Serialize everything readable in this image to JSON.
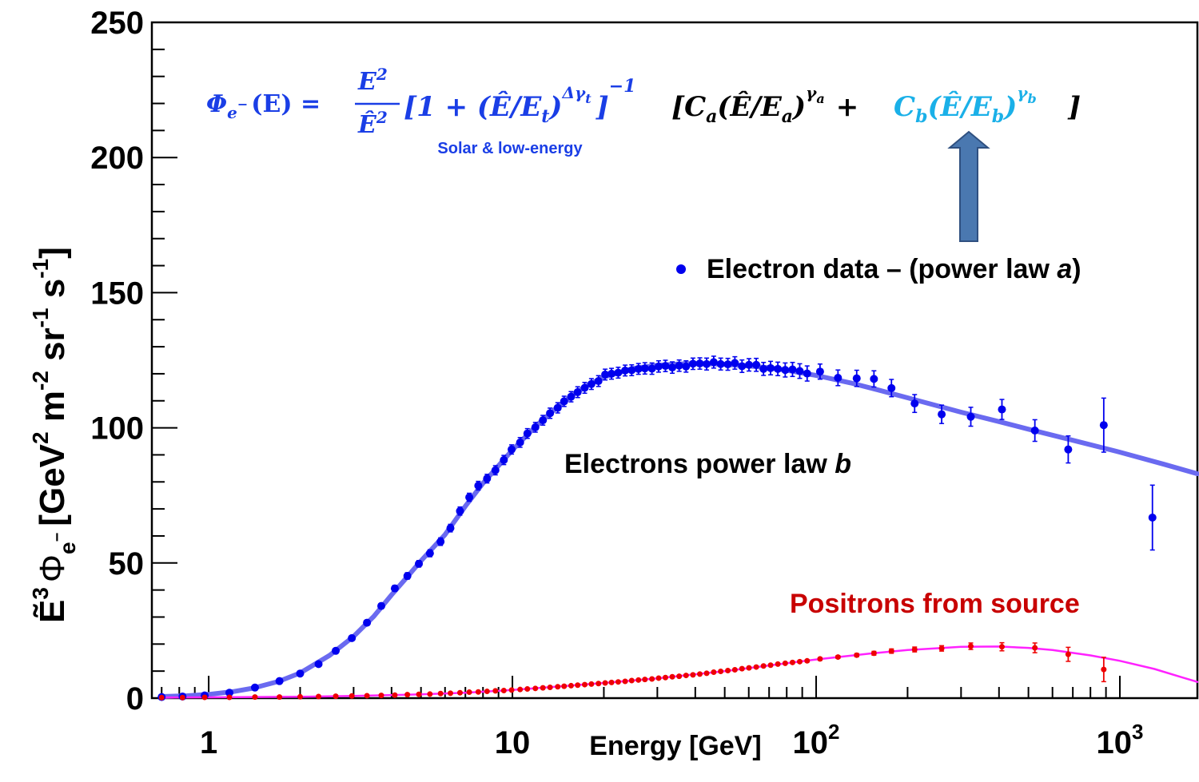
{
  "chart_data": {
    "type": "scatter",
    "xscale": "log",
    "xlim": [
      0.65,
      1800
    ],
    "ylim": [
      0,
      250
    ],
    "xlabel": "Energy [GeV]",
    "ylabel": {
      "e_tilde": "Ẽ",
      "e_exp": "3",
      "phi": "Φ",
      "phi_sub": "e",
      "phi_sub_sup": "−",
      "unit_open": "[GeV",
      "unit_gev_exp": "2",
      "unit_m": " m",
      "unit_m_exp": "-2",
      "unit_sr": " sr",
      "unit_sr_exp": "-1",
      "unit_s": " s",
      "unit_s_exp": "-1",
      "unit_close": "]"
    },
    "yticks": [
      "0",
      "50",
      "100",
      "150",
      "200",
      "250"
    ],
    "xticks": [
      {
        "value": 1,
        "base": "1",
        "exp": ""
      },
      {
        "value": 10,
        "base": "10",
        "exp": ""
      },
      {
        "value": 100,
        "base": "10",
        "exp": "2"
      },
      {
        "value": 1000,
        "base": "10",
        "exp": "3"
      }
    ],
    "series": [
      {
        "name": "Electron data – (power law a)",
        "color": "#0000ee",
        "points": [
          [
            0.7,
            0.4,
            0.3
          ],
          [
            0.82,
            0.6,
            0.3
          ],
          [
            0.97,
            1.0,
            0.3
          ],
          [
            1.17,
            2.0,
            0.3
          ],
          [
            1.42,
            3.9,
            0.4
          ],
          [
            1.71,
            6.3,
            0.5
          ],
          [
            2.0,
            9.1,
            0.5
          ],
          [
            2.3,
            12.6,
            0.6
          ],
          [
            2.62,
            17.5,
            0.7
          ],
          [
            2.96,
            22.2,
            0.8
          ],
          [
            3.32,
            27.9,
            0.9
          ],
          [
            3.7,
            34.1,
            1.0
          ],
          [
            4.1,
            40.6,
            1.1
          ],
          [
            4.51,
            45.2,
            1.2
          ],
          [
            4.92,
            49.7,
            1.2
          ],
          [
            5.35,
            53.6,
            1.3
          ],
          [
            5.8,
            57.9,
            1.4
          ],
          [
            6.25,
            62.9,
            1.4
          ],
          [
            6.72,
            69.2,
            1.5
          ],
          [
            7.21,
            74.3,
            1.5
          ],
          [
            7.72,
            78.6,
            1.6
          ],
          [
            8.25,
            81.2,
            1.6
          ],
          [
            8.79,
            84.3,
            1.7
          ],
          [
            9.37,
            88.1,
            1.7
          ],
          [
            9.94,
            92.0,
            1.7
          ],
          [
            10.6,
            94.6,
            1.8
          ],
          [
            11.2,
            97.9,
            1.8
          ],
          [
            11.9,
            100.2,
            1.8
          ],
          [
            12.6,
            102.8,
            1.8
          ],
          [
            13.3,
            105.4,
            1.9
          ],
          [
            14.1,
            107.4,
            1.9
          ],
          [
            14.8,
            109.8,
            1.9
          ],
          [
            15.6,
            111.5,
            1.9
          ],
          [
            16.4,
            113.2,
            2.0
          ],
          [
            17.3,
            114.8,
            2.0
          ],
          [
            18.2,
            116.2,
            2.0
          ],
          [
            19.2,
            117.3,
            2.0
          ],
          [
            20.2,
            119.7,
            2.0
          ],
          [
            21.2,
            120.0,
            2.0
          ],
          [
            22.3,
            120.4,
            2.0
          ],
          [
            23.5,
            121.2,
            2.0
          ],
          [
            24.7,
            121.3,
            2.0
          ],
          [
            26.0,
            121.8,
            2.0
          ],
          [
            27.3,
            122.0,
            2.1
          ],
          [
            28.8,
            121.9,
            2.1
          ],
          [
            30.3,
            122.7,
            2.1
          ],
          [
            31.9,
            122.9,
            2.1
          ],
          [
            33.6,
            122.3,
            2.1
          ],
          [
            35.4,
            123.0,
            2.1
          ],
          [
            37.3,
            122.7,
            2.1
          ],
          [
            39.3,
            123.7,
            2.1
          ],
          [
            41.4,
            123.8,
            2.1
          ],
          [
            43.6,
            123.6,
            2.2
          ],
          [
            46.0,
            124.3,
            2.2
          ],
          [
            48.5,
            123.6,
            2.2
          ],
          [
            51.2,
            123.5,
            2.2
          ],
          [
            54.0,
            124.0,
            2.3
          ],
          [
            57.0,
            122.8,
            2.3
          ],
          [
            60.1,
            123.3,
            2.3
          ],
          [
            63.5,
            123.3,
            2.4
          ],
          [
            67.1,
            121.8,
            2.4
          ],
          [
            70.8,
            122.1,
            2.5
          ],
          [
            74.8,
            121.8,
            2.5
          ],
          [
            79.1,
            121.4,
            2.6
          ],
          [
            83.6,
            121.6,
            2.6
          ],
          [
            88.3,
            121.0,
            2.7
          ],
          [
            93.4,
            120.1,
            2.8
          ],
          [
            103.0,
            120.8,
            2.8
          ],
          [
            118.0,
            118.5,
            2.9
          ],
          [
            136.0,
            118.3,
            3.0
          ],
          [
            155.0,
            118.1,
            3.0
          ],
          [
            177.0,
            114.7,
            3.2
          ],
          [
            211.0,
            109.0,
            3.3
          ],
          [
            259.0,
            105.0,
            3.4
          ],
          [
            323.0,
            104.1,
            3.5
          ],
          [
            409.0,
            106.8,
            3.7
          ],
          [
            525.0,
            99.0,
            4.0
          ],
          [
            676.0,
            92.0,
            5.0
          ],
          [
            885.0,
            101.0,
            10.0
          ],
          [
            1280.0,
            66.8,
            12.0
          ]
        ]
      },
      {
        "name": "Positrons from source",
        "color": "#ee0000",
        "points": [
          [
            0.7,
            0.2,
            0.2
          ],
          [
            0.82,
            0.2,
            0.2
          ],
          [
            0.97,
            0.3,
            0.2
          ],
          [
            1.17,
            0.3,
            0.2
          ],
          [
            1.42,
            0.4,
            0.2
          ],
          [
            1.71,
            0.4,
            0.2
          ],
          [
            2.0,
            0.5,
            0.2
          ],
          [
            2.3,
            0.6,
            0.2
          ],
          [
            2.62,
            0.7,
            0.2
          ],
          [
            2.96,
            0.8,
            0.2
          ],
          [
            3.32,
            0.9,
            0.2
          ],
          [
            3.7,
            1.0,
            0.2
          ],
          [
            4.1,
            1.1,
            0.2
          ],
          [
            4.51,
            1.3,
            0.2
          ],
          [
            4.92,
            1.4,
            0.2
          ],
          [
            5.35,
            1.5,
            0.2
          ],
          [
            5.8,
            1.7,
            0.2
          ],
          [
            6.25,
            1.8,
            0.2
          ],
          [
            6.72,
            2.0,
            0.2
          ],
          [
            7.21,
            2.2,
            0.2
          ],
          [
            7.72,
            2.3,
            0.2
          ],
          [
            8.25,
            2.5,
            0.2
          ],
          [
            8.79,
            2.7,
            0.2
          ],
          [
            9.37,
            2.8,
            0.2
          ],
          [
            9.94,
            3.0,
            0.2
          ],
          [
            10.6,
            3.2,
            0.2
          ],
          [
            11.2,
            3.4,
            0.2
          ],
          [
            11.9,
            3.6,
            0.2
          ],
          [
            12.6,
            3.8,
            0.2
          ],
          [
            13.3,
            4.0,
            0.2
          ],
          [
            14.1,
            4.2,
            0.2
          ],
          [
            14.8,
            4.4,
            0.2
          ],
          [
            15.6,
            4.6,
            0.2
          ],
          [
            16.4,
            4.8,
            0.2
          ],
          [
            17.3,
            5.0,
            0.2
          ],
          [
            18.2,
            5.2,
            0.2
          ],
          [
            19.2,
            5.4,
            0.2
          ],
          [
            20.2,
            5.6,
            0.2
          ],
          [
            21.2,
            5.8,
            0.2
          ],
          [
            22.3,
            6.0,
            0.2
          ],
          [
            23.5,
            6.2,
            0.2
          ],
          [
            24.7,
            6.5,
            0.2
          ],
          [
            26.0,
            6.7,
            0.2
          ],
          [
            27.3,
            6.9,
            0.2
          ],
          [
            28.8,
            7.1,
            0.2
          ],
          [
            30.3,
            7.4,
            0.2
          ],
          [
            31.9,
            7.6,
            0.2
          ],
          [
            33.6,
            7.9,
            0.2
          ],
          [
            35.4,
            8.1,
            0.2
          ],
          [
            37.3,
            8.4,
            0.2
          ],
          [
            39.3,
            8.6,
            0.2
          ],
          [
            41.4,
            8.9,
            0.2
          ],
          [
            43.6,
            9.2,
            0.2
          ],
          [
            46.0,
            9.6,
            0.2
          ],
          [
            48.5,
            9.9,
            0.3
          ],
          [
            51.2,
            10.2,
            0.3
          ],
          [
            54.0,
            10.5,
            0.3
          ],
          [
            57.0,
            10.9,
            0.3
          ],
          [
            60.1,
            11.2,
            0.3
          ],
          [
            63.5,
            11.5,
            0.3
          ],
          [
            67.1,
            11.9,
            0.3
          ],
          [
            70.8,
            12.2,
            0.3
          ],
          [
            74.8,
            12.6,
            0.3
          ],
          [
            79.1,
            12.9,
            0.3
          ],
          [
            83.6,
            13.2,
            0.4
          ],
          [
            88.3,
            13.5,
            0.4
          ],
          [
            93.4,
            13.8,
            0.4
          ],
          [
            103.0,
            14.5,
            0.5
          ],
          [
            118.0,
            15.2,
            0.5
          ],
          [
            136.0,
            15.9,
            0.6
          ],
          [
            155.0,
            16.6,
            0.7
          ],
          [
            177.0,
            17.4,
            0.8
          ],
          [
            211.0,
            18.0,
            0.9
          ],
          [
            259.0,
            18.4,
            1.0
          ],
          [
            323.0,
            19.2,
            1.2
          ],
          [
            409.0,
            19.0,
            1.5
          ],
          [
            525.0,
            18.6,
            1.8
          ],
          [
            676.0,
            16.2,
            2.6
          ],
          [
            885.0,
            10.6,
            4.5
          ]
        ]
      }
    ],
    "fits": [
      {
        "name": "Electrons power law b",
        "color": "#6a6af0",
        "points": [
          [
            0.7,
            0.6
          ],
          [
            0.85,
            0.9
          ],
          [
            1.0,
            1.4
          ],
          [
            1.2,
            2.4
          ],
          [
            1.4,
            3.7
          ],
          [
            1.7,
            6.2
          ],
          [
            2.0,
            9.3
          ],
          [
            2.5,
            15.8
          ],
          [
            3.0,
            22.8
          ],
          [
            3.5,
            30.3
          ],
          [
            4.0,
            38.2
          ],
          [
            4.5,
            44.8
          ],
          [
            5.0,
            50.8
          ],
          [
            6.0,
            60.5
          ],
          [
            7.0,
            71.0
          ],
          [
            8.0,
            79.5
          ],
          [
            9.0,
            86.0
          ],
          [
            10.0,
            91.8
          ],
          [
            12.0,
            100.8
          ],
          [
            14.0,
            107.5
          ],
          [
            16.0,
            112.6
          ],
          [
            18.0,
            116.2
          ],
          [
            20.0,
            118.8
          ],
          [
            25.0,
            122.0
          ],
          [
            30.0,
            123.1
          ],
          [
            35.0,
            123.6
          ],
          [
            40.0,
            123.8
          ],
          [
            50.0,
            123.5
          ],
          [
            60.0,
            122.9
          ],
          [
            70.0,
            122.2
          ],
          [
            80.0,
            121.3
          ],
          [
            100.0,
            119.4
          ],
          [
            130.0,
            116.6
          ],
          [
            160.0,
            114.0
          ],
          [
            200.0,
            111.1
          ],
          [
            300.0,
            105.8
          ],
          [
            400.0,
            102.3
          ],
          [
            500.0,
            99.5
          ],
          [
            700.0,
            95.4
          ],
          [
            1000.0,
            91.0
          ],
          [
            1400.0,
            86.5
          ],
          [
            1800.0,
            83.0
          ]
        ]
      },
      {
        "name": "",
        "color": "#ff22ff",
        "points": [
          [
            0.7,
            0.2
          ],
          [
            1.0,
            0.3
          ],
          [
            2.0,
            0.5
          ],
          [
            3.0,
            0.8
          ],
          [
            5.0,
            1.4
          ],
          [
            7.0,
            2.0
          ],
          [
            10.0,
            3.0
          ],
          [
            15.0,
            4.5
          ],
          [
            20.0,
            5.6
          ],
          [
            30.0,
            7.3
          ],
          [
            50.0,
            10.0
          ],
          [
            70.0,
            12.1
          ],
          [
            100.0,
            14.3
          ],
          [
            150.0,
            16.5
          ],
          [
            200.0,
            17.8
          ],
          [
            300.0,
            19.0
          ],
          [
            400.0,
            19.1
          ],
          [
            500.0,
            18.6
          ],
          [
            600.0,
            17.8
          ],
          [
            800.0,
            15.8
          ],
          [
            1000.0,
            13.8
          ],
          [
            1300.0,
            10.8
          ],
          [
            1600.0,
            7.7
          ],
          [
            1800.0,
            6.0
          ]
        ]
      }
    ],
    "annotations": {
      "legend_label_main": "Electron data – (power law ",
      "legend_label_italic": "a",
      "legend_label_close": ")",
      "electrons_b_main": "Electrons power law ",
      "electrons_b_italic": "b",
      "positrons": "Positrons from source",
      "solar": "Solar & low-energy"
    },
    "formula": {
      "lhs": "Φ",
      "lhs_sub": "e",
      "lhs_sub_sup": "−",
      "lhs_arg": "(E) =",
      "num": "E",
      "num_exp": "2",
      "den": "Ê",
      "den_exp": "2",
      "bracket1_open": "[1 + (Ê/E",
      "bracket1_sub": "t",
      "bracket1_close": ")",
      "bracket1_exp": "Δγ",
      "bracket1_exp_sub": "t",
      "bracket1_end": "]",
      "bracket1_pow": "−1",
      "term_a_open": "[C",
      "term_a_sub": "a",
      "term_a_mid": "(Ê/E",
      "term_a_sub2": "a",
      "term_a_close": ")",
      "term_a_exp": "γ",
      "term_a_exp_sub": "a",
      "plus": "+",
      "term_b_c": "C",
      "term_b_sub": "b",
      "term_b_mid": "(Ê/E",
      "term_b_sub2": "b",
      "term_b_close": ")",
      "term_b_exp": "γ",
      "term_b_exp_sub": "b",
      "end_bracket": "]"
    },
    "colors": {
      "formula_blue": "#1a3ee6",
      "formula_black": "#000000",
      "formula_cyan": "#1ab0e8",
      "arrow_fill": "#4a78b0",
      "arrow_stroke": "#2f5080",
      "positrons_label": "#c80000"
    },
    "grid": false
  }
}
